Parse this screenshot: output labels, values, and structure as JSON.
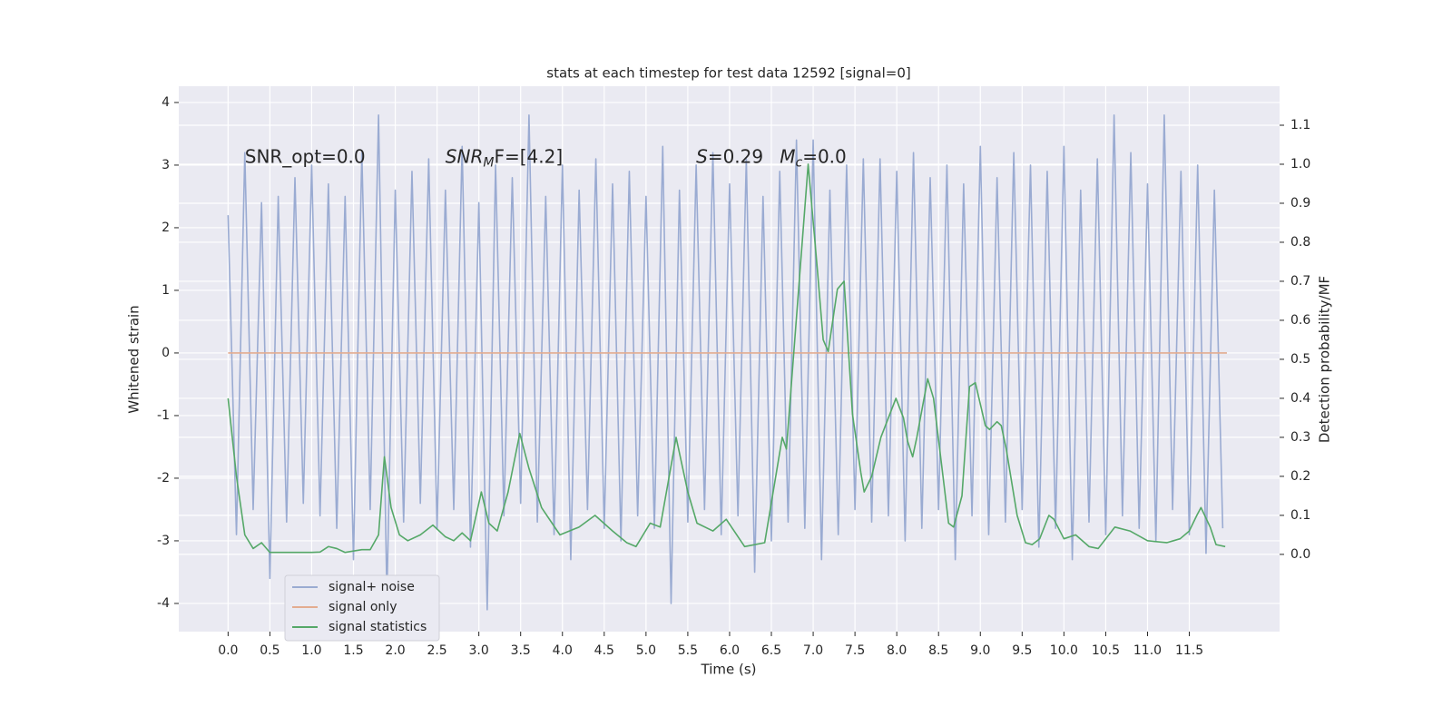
{
  "chart_data": {
    "type": "line",
    "title": "stats at each timestep for test data 12592 [signal=0]",
    "xlabel": "Time (s)",
    "ylabel": "Whitened strain",
    "y2label": "Detection probability/MF",
    "xlim": [
      -0.59,
      12.58
    ],
    "ylim": [
      -4.45,
      4.26
    ],
    "y2lim": [
      -0.198,
      1.2
    ],
    "xticks": [
      {
        "value": 0,
        "label": "0.0"
      },
      0.5,
      {
        "value": 1,
        "label": "1.0"
      },
      1.5,
      {
        "value": 2,
        "label": "2.0"
      },
      2.5,
      {
        "value": 3,
        "label": "3.0"
      },
      3.5,
      {
        "value": 4,
        "label": "4.0"
      },
      4.5,
      {
        "value": 5,
        "label": "5.0"
      },
      5.5,
      {
        "value": 6,
        "label": "6.0"
      },
      6.5,
      {
        "value": 7,
        "label": "7.0"
      },
      7.5,
      {
        "value": 8,
        "label": "8.0"
      },
      8.5,
      {
        "value": 9,
        "label": "9.0"
      },
      9.5,
      {
        "value": 10,
        "label": "10.0"
      },
      10.5,
      {
        "value": 11,
        "label": "11.0"
      },
      11.5
    ],
    "yticks": [
      -4,
      -3,
      -2,
      -1,
      0,
      1,
      2,
      3,
      4
    ],
    "y2ticks": [
      {
        "value": 0,
        "label": "0.0"
      },
      0.1,
      0.2,
      0.3,
      0.4,
      0.5,
      0.6,
      0.7,
      0.8,
      0.9,
      {
        "value": 1,
        "label": "1.0"
      },
      1.1
    ],
    "grid": true,
    "legend": "lower left",
    "series": [
      {
        "name": "signal+ noise",
        "color": "#9aabd2",
        "axis": "y",
        "x": [
          0,
          0.1,
          0.2,
          0.3,
          0.4,
          0.5,
          0.6,
          0.7,
          0.8,
          0.9,
          1,
          1.1,
          1.2,
          1.3,
          1.4,
          1.5,
          1.6,
          1.7,
          1.8,
          1.9,
          2,
          2.1,
          2.2,
          2.3,
          2.4,
          2.5,
          2.6,
          2.7,
          2.8,
          2.9,
          3,
          3.1,
          3.2,
          3.3,
          3.4,
          3.5,
          3.6,
          3.7,
          3.8,
          3.9,
          4,
          4.1,
          4.2,
          4.3,
          4.4,
          4.5,
          4.6,
          4.7,
          4.8,
          4.9,
          5,
          5.1,
          5.2,
          5.3,
          5.4,
          5.5,
          5.6,
          5.7,
          5.8,
          5.9,
          6,
          6.1,
          6.2,
          6.3,
          6.4,
          6.5,
          6.6,
          6.7,
          6.8,
          6.9,
          7,
          7.1,
          7.2,
          7.3,
          7.4,
          7.5,
          7.6,
          7.7,
          7.8,
          7.9,
          8,
          8.1,
          8.2,
          8.3,
          8.4,
          8.5,
          8.6,
          8.7,
          8.8,
          8.9,
          9,
          9.1,
          9.2,
          9.3,
          9.4,
          9.5,
          9.6,
          9.7,
          9.8,
          9.9,
          10,
          10.1,
          10.2,
          10.3,
          10.4,
          10.5,
          10.6,
          10.7,
          10.8,
          10.9,
          11,
          11.1,
          11.2,
          11.3,
          11.4,
          11.5,
          11.6,
          11.7,
          11.8,
          11.9
        ],
        "values": [
          2.2,
          -2.9,
          3.2,
          -2.5,
          2.4,
          -3.6,
          2.5,
          -2.7,
          2.8,
          -2.4,
          3.0,
          -2.6,
          2.7,
          -2.8,
          2.5,
          -3.3,
          3.2,
          -2.5,
          3.8,
          -3.9,
          2.6,
          -2.7,
          2.9,
          -2.4,
          3.1,
          -2.8,
          2.6,
          -2.5,
          3.3,
          -3.1,
          2.4,
          -4.1,
          3.0,
          -2.6,
          2.8,
          -2.4,
          3.8,
          -2.7,
          2.5,
          -2.9,
          3.0,
          -3.3,
          2.6,
          -2.5,
          3.1,
          -2.8,
          2.7,
          -3.0,
          2.9,
          -2.6,
          2.5,
          -2.8,
          3.3,
          -4.0,
          2.6,
          -2.7,
          3.0,
          -2.5,
          3.2,
          -2.9,
          2.7,
          -2.6,
          3.1,
          -3.5,
          2.5,
          -3.0,
          2.9,
          -2.7,
          3.4,
          -2.8,
          3.4,
          -3.3,
          2.6,
          -2.9,
          3.0,
          -2.5,
          3.1,
          -2.7,
          3.1,
          -2.6,
          2.9,
          -3.0,
          3.2,
          -2.8,
          2.8,
          -2.5,
          3.0,
          -3.3,
          2.7,
          -2.6,
          3.3,
          -2.9,
          2.8,
          -2.7,
          3.2,
          -2.5,
          3.0,
          -3.1,
          2.9,
          -2.8,
          3.3,
          -3.3,
          2.6,
          -2.7,
          3.1,
          -2.9,
          3.8,
          -2.6,
          3.2,
          -2.8,
          2.7,
          -3.0,
          3.8,
          -2.5,
          2.9,
          -2.9,
          3.0,
          -3.2,
          2.6,
          -2.8
        ],
        "data_labels": null
      },
      {
        "name": "signal only",
        "color": "#e3ac90",
        "axis": "y",
        "x": [
          0,
          11.95
        ],
        "values": [
          0,
          0
        ]
      },
      {
        "name": "signal statistics",
        "color": "#55a868",
        "axis": "y2",
        "x": [
          0,
          0.1,
          0.2,
          0.3,
          0.4,
          0.5,
          0.7,
          1.0,
          1.1,
          1.2,
          1.3,
          1.4,
          1.6,
          1.7,
          1.8,
          1.87,
          1.95,
          2.05,
          2.15,
          2.3,
          2.45,
          2.6,
          2.7,
          2.8,
          2.9,
          3.03,
          3.12,
          3.22,
          3.35,
          3.49,
          3.6,
          3.75,
          3.97,
          4.2,
          4.39,
          4.6,
          4.77,
          4.88,
          5.05,
          5.17,
          5.36,
          5.5,
          5.61,
          5.8,
          5.96,
          6.18,
          6.42,
          6.63,
          6.68,
          6.94,
          7.05,
          7.12,
          7.18,
          7.29,
          7.37,
          7.47,
          7.57,
          7.61,
          7.7,
          7.81,
          7.99,
          8.08,
          8.13,
          8.19,
          8.24,
          8.37,
          8.44,
          8.57,
          8.62,
          8.68,
          8.78,
          8.87,
          8.94,
          9.06,
          9.11,
          9.2,
          9.25,
          9.31,
          9.44,
          9.54,
          9.62,
          9.71,
          9.82,
          9.88,
          10.0,
          10.14,
          10.3,
          10.41,
          10.61,
          10.79,
          11.0,
          11.23,
          11.39,
          11.5,
          11.59,
          11.64,
          11.75,
          11.82,
          11.93
        ],
        "values": [
          0.4,
          0.2,
          0.05,
          0.015,
          0.03,
          0.005,
          0.005,
          0.005,
          0.006,
          0.02,
          0.015,
          0.005,
          0.012,
          0.012,
          0.05,
          0.25,
          0.12,
          0.05,
          0.035,
          0.05,
          0.075,
          0.045,
          0.035,
          0.055,
          0.035,
          0.16,
          0.08,
          0.06,
          0.16,
          0.31,
          0.22,
          0.12,
          0.05,
          0.07,
          0.1,
          0.06,
          0.03,
          0.02,
          0.08,
          0.07,
          0.3,
          0.16,
          0.08,
          0.06,
          0.09,
          0.02,
          0.03,
          0.3,
          0.27,
          1.0,
          0.73,
          0.55,
          0.52,
          0.68,
          0.7,
          0.36,
          0.21,
          0.16,
          0.2,
          0.3,
          0.4,
          0.35,
          0.29,
          0.25,
          0.3,
          0.45,
          0.4,
          0.17,
          0.08,
          0.07,
          0.15,
          0.43,
          0.44,
          0.33,
          0.32,
          0.34,
          0.33,
          0.27,
          0.1,
          0.03,
          0.025,
          0.04,
          0.1,
          0.09,
          0.04,
          0.05,
          0.02,
          0.015,
          0.07,
          0.06,
          0.035,
          0.03,
          0.04,
          0.06,
          0.1,
          0.12,
          0.07,
          0.025,
          0.02
        ]
      }
    ],
    "annotations": [
      {
        "x": 0.2,
        "y": 3.12,
        "parts": [
          {
            "text": "SNR_opt=0.0",
            "style": "normal"
          }
        ]
      },
      {
        "x": 2.6,
        "y": 3.12,
        "parts": [
          {
            "text": "SNR",
            "style": "italic"
          },
          {
            "text": "M",
            "style": "sub"
          },
          {
            "text": "F=[4.2]",
            "style": "normal"
          }
        ]
      },
      {
        "x": 5.6,
        "y": 3.12,
        "parts": [
          {
            "text": "S",
            "style": "italic"
          },
          {
            "text": "=0.29",
            "style": "normal"
          }
        ]
      },
      {
        "x": 6.6,
        "y": 3.12,
        "parts": [
          {
            "text": "M",
            "style": "italic"
          },
          {
            "text": "c",
            "style": "sub"
          },
          {
            "text": "=0.0",
            "style": "normal"
          }
        ]
      }
    ]
  }
}
